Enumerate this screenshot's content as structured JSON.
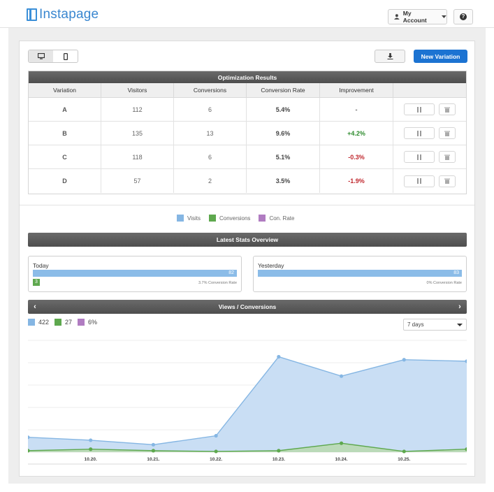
{
  "header": {
    "brand": "Instapage",
    "account_label": "My Account",
    "help_label": "?"
  },
  "toolbar": {
    "new_variation_label": "New Variation",
    "desktop_icon": "desktop-icon",
    "mobile_icon": "mobile-icon",
    "download_icon": "download-icon"
  },
  "results": {
    "title": "Optimization Results",
    "columns": [
      "Variation",
      "Visitors",
      "Conversions",
      "Conversion Rate",
      "Improvement"
    ],
    "rows": [
      {
        "variation": "A",
        "visitors": "112",
        "conversions": "6",
        "rate": "5.4%",
        "improvement": "-",
        "trend": "none"
      },
      {
        "variation": "B",
        "visitors": "135",
        "conversions": "13",
        "rate": "9.6%",
        "improvement": "+4.2%",
        "trend": "up"
      },
      {
        "variation": "C",
        "visitors": "118",
        "conversions": "6",
        "rate": "5.1%",
        "improvement": "-0.3%",
        "trend": "down"
      },
      {
        "variation": "D",
        "visitors": "57",
        "conversions": "2",
        "rate": "3.5%",
        "improvement": "-1.9%",
        "trend": "down"
      }
    ]
  },
  "legend": {
    "visits": "Visits",
    "conversions": "Conversions",
    "con_rate": "Con. Rate"
  },
  "stats": {
    "title": "Latest Stats Overview",
    "today": {
      "label": "Today",
      "visits": "82",
      "conversions": "3",
      "note": "3.7% Conversion Rate",
      "visits_fill": 1.0
    },
    "yesterday": {
      "label": "Yesterday",
      "visits": "83",
      "conversions": "",
      "note": "0% Conversion Rate",
      "visits_fill": 1.0
    }
  },
  "views": {
    "title": "Views / Conversions",
    "total_visits": "422",
    "total_conversions": "27",
    "rate": "6%",
    "range": "7 days"
  },
  "colors": {
    "visits": "#85b6e3",
    "conversions": "#5ea84e",
    "con_rate": "#b07cc1",
    "accent": "#1c73d2",
    "positive": "#2e8b2e",
    "negative": "#c0282e"
  },
  "chart_data": {
    "type": "area",
    "x": [
      "",
      "10.20.",
      "10.21.",
      "10.22.",
      "10.23.",
      "10.24.",
      "10.25.",
      ""
    ],
    "series": [
      {
        "name": "Visits",
        "values": [
          10,
          8,
          5,
          11,
          64,
          51,
          62,
          61
        ]
      },
      {
        "name": "Conversions",
        "values": [
          1,
          2,
          1,
          0.5,
          1,
          6,
          0.5,
          2
        ]
      }
    ],
    "ylim": [
      0,
      75
    ],
    "grid": true
  }
}
